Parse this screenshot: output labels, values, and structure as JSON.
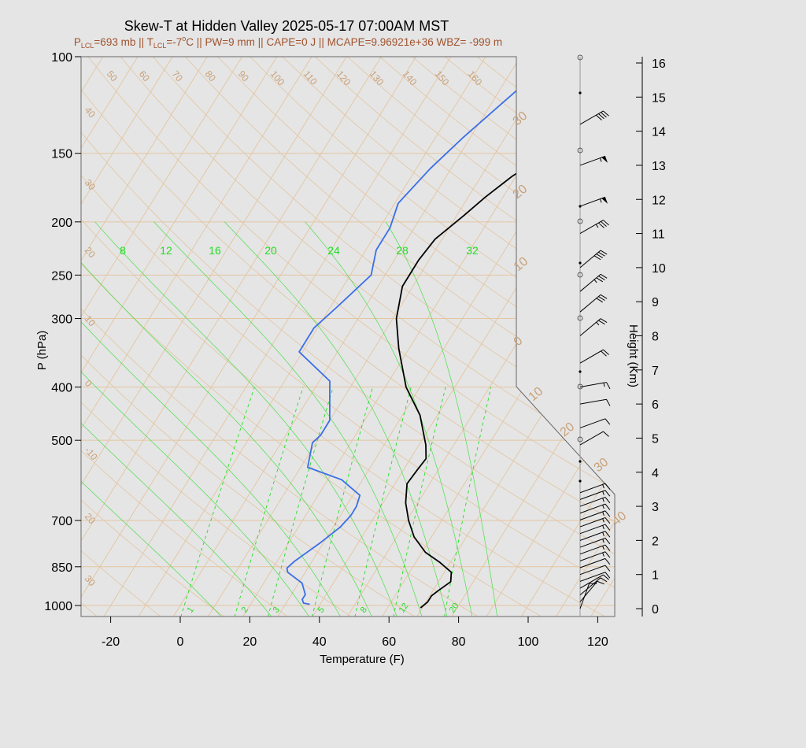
{
  "title": "Skew-T at Hidden Valley 2025-05-17 07:00AM MST",
  "subtitle": {
    "plcl_sym": "P",
    "plcl_sub": "LCL",
    "plcl_val": "=693 mb || ",
    "tlcl_sym": "T",
    "tlcl_sub": "LCL",
    "tlcl_val": "=-7",
    "deg": "o",
    "rest": "C || PW=9 mm || CAPE=0 J || MCAPE=9.96921e+36 WBZ= -999 m"
  },
  "chart_data": {
    "type": "line",
    "xlabel": "Temperature (F)",
    "ylabel": "P (hPa)",
    "y2label": "Height (Km)",
    "x_ticks": [
      -20,
      0,
      20,
      40,
      60,
      80,
      100,
      120
    ],
    "p_ticks": [
      100,
      150,
      200,
      250,
      300,
      400,
      500,
      700,
      850,
      1000
    ],
    "height_ticks": [
      0,
      1,
      2,
      3,
      4,
      5,
      6,
      7,
      8,
      9,
      10,
      11,
      12,
      13,
      14,
      15,
      16
    ],
    "xlim": [
      -28,
      97
    ],
    "plim": [
      1050,
      100
    ],
    "isotherm_labels_f": [
      "50",
      "60",
      "70",
      "80",
      "90",
      "100",
      "110",
      "120",
      "130",
      "140",
      "150",
      "160"
    ],
    "isotherm_labels_left": [
      "40",
      "30",
      "20",
      "10",
      "0",
      "-10",
      "20",
      "30"
    ],
    "isotherm_labels_right": [
      "30",
      "20",
      "10",
      "0",
      "10",
      "20",
      "30",
      "40"
    ],
    "mixing_ratio_top": [
      "8",
      "12",
      "16",
      "20",
      "24",
      "28",
      "32"
    ],
    "mixing_ratio_bottom": [
      "1",
      "2",
      "3",
      "5",
      "8",
      "12",
      "20"
    ],
    "series": [
      {
        "name": "temperature",
        "color": "#000000",
        "points": [
          [
            69.5,
            1010
          ],
          [
            70.5,
            985
          ],
          [
            70.5,
            960
          ],
          [
            71.5,
            940
          ],
          [
            73.5,
            905
          ],
          [
            72,
            870
          ],
          [
            67,
            835
          ],
          [
            61,
            800
          ],
          [
            55,
            750
          ],
          [
            50.5,
            700
          ],
          [
            46.5,
            650
          ],
          [
            43.5,
            600
          ],
          [
            44,
            565
          ],
          [
            44.5,
            540
          ],
          [
            42,
            510
          ],
          [
            35,
            450
          ],
          [
            26,
            400
          ],
          [
            17,
            340
          ],
          [
            11,
            300
          ],
          [
            7,
            262
          ],
          [
            7,
            235
          ],
          [
            8,
            215
          ],
          [
            12,
            195
          ],
          [
            15,
            180
          ],
          [
            19,
            165
          ],
          [
            25,
            150
          ],
          [
            32,
            135
          ],
          [
            39,
            120
          ],
          [
            48,
            100
          ]
        ]
      },
      {
        "name": "dewpoint",
        "color": "#3a6ee8",
        "points": [
          [
            37,
            995
          ],
          [
            35,
            990
          ],
          [
            34,
            975
          ],
          [
            34,
            955
          ],
          [
            31,
            910
          ],
          [
            25,
            870
          ],
          [
            24,
            855
          ],
          [
            25,
            830
          ],
          [
            29,
            770
          ],
          [
            32,
            720
          ],
          [
            33,
            685
          ],
          [
            33,
            660
          ],
          [
            32,
            630
          ],
          [
            24,
            590
          ],
          [
            12,
            560
          ],
          [
            9,
            505
          ],
          [
            10,
            490
          ],
          [
            10,
            460
          ],
          [
            3,
            390
          ],
          [
            -11,
            345
          ],
          [
            -11,
            312
          ],
          [
            -8,
            285
          ],
          [
            -4,
            250
          ],
          [
            -7,
            225
          ],
          [
            -7,
            205
          ],
          [
            -9,
            185
          ],
          [
            -6,
            160
          ],
          [
            -2,
            140
          ],
          [
            10,
            100
          ]
        ]
      }
    ],
    "wind_barbs": [
      {
        "h": 0.0,
        "kt": 10,
        "dir": 200
      },
      {
        "h": 0.2,
        "kt": 10,
        "dir": 220
      },
      {
        "h": 0.4,
        "kt": 10,
        "dir": 230
      },
      {
        "h": 0.6,
        "kt": 10,
        "dir": 240
      },
      {
        "h": 0.8,
        "kt": 10,
        "dir": 250
      },
      {
        "h": 1.0,
        "kt": 10,
        "dir": 250
      },
      {
        "h": 1.2,
        "kt": 10,
        "dir": 250
      },
      {
        "h": 1.4,
        "kt": 15,
        "dir": 250
      },
      {
        "h": 1.6,
        "kt": 15,
        "dir": 250
      },
      {
        "h": 1.8,
        "kt": 15,
        "dir": 250
      },
      {
        "h": 2.0,
        "kt": 15,
        "dir": 250
      },
      {
        "h": 2.2,
        "kt": 15,
        "dir": 250
      },
      {
        "h": 2.4,
        "kt": 15,
        "dir": 250
      },
      {
        "h": 2.6,
        "kt": 15,
        "dir": 250
      },
      {
        "h": 2.8,
        "kt": 15,
        "dir": 250
      },
      {
        "h": 3.0,
        "kt": 15,
        "dir": 250
      },
      {
        "h": 3.2,
        "kt": 15,
        "dir": 250
      },
      {
        "h": 3.4,
        "kt": 15,
        "dir": 250
      },
      {
        "h": 4.8,
        "kt": 10,
        "dir": 240
      },
      {
        "h": 5.3,
        "kt": 10,
        "dir": 250
      },
      {
        "h": 6.0,
        "kt": 10,
        "dir": 260
      },
      {
        "h": 6.5,
        "kt": 15,
        "dir": 260
      },
      {
        "h": 7.2,
        "kt": 20,
        "dir": 240
      },
      {
        "h": 8.0,
        "kt": 25,
        "dir": 230
      },
      {
        "h": 8.7,
        "kt": 30,
        "dir": 230
      },
      {
        "h": 9.3,
        "kt": 35,
        "dir": 230
      },
      {
        "h": 10.0,
        "kt": 40,
        "dir": 230
      },
      {
        "h": 11.0,
        "kt": 35,
        "dir": 240
      },
      {
        "h": 11.8,
        "kt": 55,
        "dir": 250
      },
      {
        "h": 13.0,
        "kt": 55,
        "dir": 250
      },
      {
        "h": 14.2,
        "kt": 40,
        "dir": 240
      }
    ]
  },
  "colors": {
    "background": "#e5e5e5",
    "isotherm": "#e3c5a0",
    "isobar": "#e3c5a0",
    "mixing_ratio": "#22dd22",
    "temperature": "#000000",
    "dewpoint": "#3a6ee8",
    "subtitle": "#a0522d"
  }
}
